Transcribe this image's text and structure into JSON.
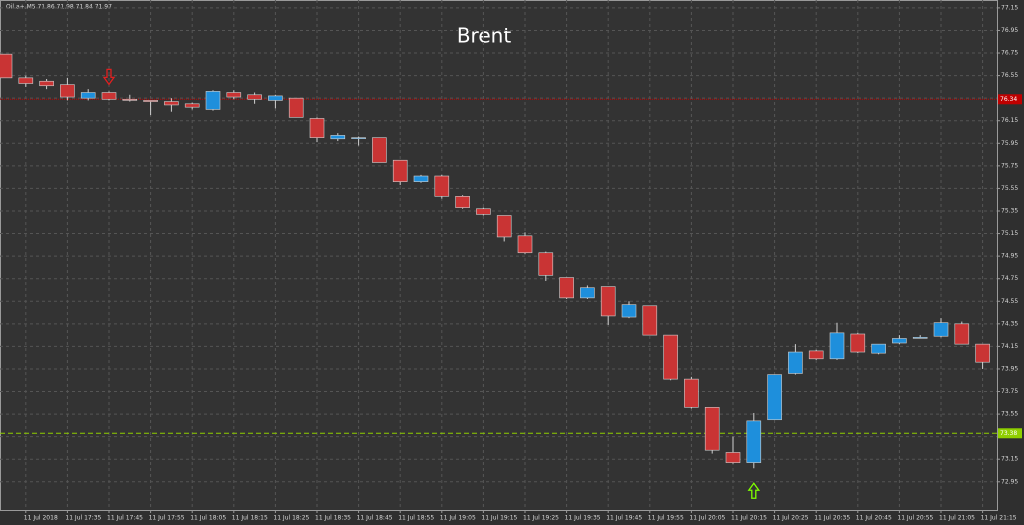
{
  "chart_data": {
    "type": "candlestick",
    "header": "Oil.a+,M5  71.86 71.98 71.84 71.97",
    "title": "Brent",
    "categories": [
      null,
      "11 Jul 2018",
      null,
      "11 Jul 17:35",
      null,
      "11 Jul 17:45",
      null,
      "11 Jul 17:55",
      null,
      "11 Jul 18:05",
      null,
      "11 Jul 18:15",
      null,
      "11 Jul 18:25",
      null,
      "11 Jul 18:35",
      null,
      "11 Jul 18:45",
      null,
      "11 Jul 18:55",
      null,
      "11 Jul 19:05",
      null,
      "11 Jul 19:15",
      null,
      "11 Jul 19:25",
      null,
      "11 Jul 19:35",
      null,
      "11 Jul 19:45",
      null,
      "11 Jul 19:55",
      null,
      "11 Jul 20:05",
      null,
      "11 Jul 20:15",
      null,
      "11 Jul 20:25",
      null,
      "11 Jul 20:35",
      null,
      "11 Jul 20:45",
      null,
      "11 Jul 20:55",
      null,
      "11 Jul 21:05",
      null,
      "11 Jul 21:15"
    ],
    "open": [
      76.74,
      76.53,
      76.5,
      76.47,
      76.35,
      76.4,
      76.34,
      76.33,
      76.32,
      76.3,
      76.25,
      76.4,
      76.38,
      76.33,
      76.35,
      76.17,
      75.99,
      76.0,
      76.0,
      75.8,
      75.61,
      75.66,
      75.48,
      75.37,
      75.31,
      75.13,
      74.98,
      74.76,
      74.58,
      74.68,
      74.41,
      74.51,
      74.25,
      73.86,
      73.61,
      73.21,
      73.12,
      73.5,
      73.91,
      74.11,
      74.04,
      74.26,
      74.09,
      74.18,
      74.23,
      74.24,
      74.35,
      74.17
    ],
    "high": [
      76.74,
      76.55,
      76.52,
      76.53,
      76.43,
      76.41,
      76.38,
      76.33,
      76.35,
      76.31,
      76.42,
      76.42,
      76.4,
      76.38,
      76.35,
      76.18,
      76.04,
      76.01,
      76.0,
      75.8,
      75.67,
      75.67,
      75.49,
      75.38,
      75.31,
      75.16,
      74.99,
      74.76,
      74.69,
      74.68,
      74.55,
      74.51,
      74.25,
      73.88,
      73.61,
      73.35,
      73.56,
      73.9,
      74.17,
      74.12,
      74.36,
      74.27,
      74.17,
      74.25,
      74.25,
      74.4,
      74.37,
      74.17
    ],
    "low": [
      76.53,
      76.45,
      76.43,
      76.33,
      76.33,
      76.33,
      76.32,
      76.2,
      76.23,
      76.25,
      76.24,
      76.34,
      76.3,
      76.26,
      76.18,
      75.96,
      75.97,
      75.93,
      75.78,
      75.58,
      75.6,
      75.46,
      75.37,
      75.31,
      75.08,
      74.97,
      74.73,
      74.57,
      74.57,
      74.34,
      74.4,
      74.25,
      73.85,
      73.6,
      73.2,
      73.11,
      73.07,
      73.5,
      73.9,
      74.03,
      74.03,
      74.09,
      74.08,
      74.17,
      74.22,
      74.23,
      74.17,
      73.95
    ],
    "close": [
      76.53,
      76.48,
      76.46,
      76.36,
      76.4,
      76.34,
      76.33,
      76.32,
      76.29,
      76.27,
      76.41,
      76.36,
      76.34,
      76.37,
      76.18,
      76.0,
      76.02,
      76.0,
      75.78,
      75.61,
      75.66,
      75.48,
      75.38,
      75.32,
      75.12,
      74.98,
      74.78,
      74.58,
      74.67,
      74.42,
      74.52,
      74.25,
      73.86,
      73.61,
      73.23,
      73.12,
      73.49,
      73.9,
      74.1,
      74.04,
      74.27,
      74.1,
      74.17,
      74.22,
      74.23,
      74.36,
      74.17,
      74.01
    ],
    "up_color": "#1e8fdc",
    "down_color": "#c93434",
    "ylim": [
      72.7,
      77.22
    ],
    "yticks": [
      77.15,
      76.95,
      76.75,
      76.55,
      76.35,
      76.15,
      75.95,
      75.75,
      75.55,
      75.35,
      75.15,
      74.95,
      74.75,
      74.55,
      74.35,
      74.15,
      73.95,
      73.75,
      73.55,
      73.35,
      73.15,
      72.95
    ],
    "grid": true,
    "hlines": [
      {
        "value": 76.34,
        "label": "76.34",
        "color": "#c00000"
      },
      {
        "value": 73.38,
        "label": "73.38",
        "color": "#8fcf00"
      }
    ],
    "arrows": [
      {
        "at": 5,
        "direction": "down",
        "color": "#e02020"
      },
      {
        "at": 36,
        "direction": "up",
        "color": "#7fff00"
      }
    ]
  }
}
